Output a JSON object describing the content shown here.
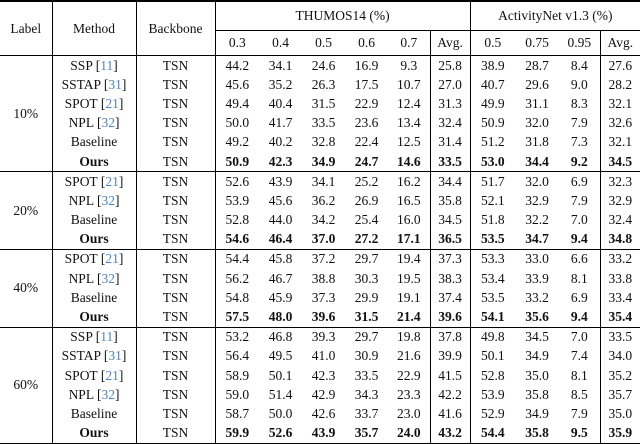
{
  "table": {
    "headers": {
      "label": "Label",
      "method": "Method",
      "backbone": "Backbone",
      "thumos": "THUMOS14 (%)",
      "activitynet": "ActivityNet v1.3 (%)",
      "thumos_cols": [
        "0.3",
        "0.4",
        "0.5",
        "0.6",
        "0.7",
        "Avg."
      ],
      "anet_cols": [
        "0.5",
        "0.75",
        "0.95",
        "Avg."
      ]
    },
    "citation_color": "#4a86c9",
    "groups": [
      {
        "label": "10%",
        "rows": [
          {
            "method": "SSP",
            "cite": "11",
            "backbone": "TSN",
            "bold": false,
            "thumos": [
              "44.2",
              "34.1",
              "24.6",
              "16.9",
              "9.3",
              "25.8"
            ],
            "anet": [
              "38.9",
              "28.7",
              "8.4",
              "27.6"
            ]
          },
          {
            "method": "SSTAP",
            "cite": "31",
            "backbone": "TSN",
            "bold": false,
            "thumos": [
              "45.6",
              "35.2",
              "26.3",
              "17.5",
              "10.7",
              "27.0"
            ],
            "anet": [
              "40.7",
              "29.6",
              "9.0",
              "28.2"
            ]
          },
          {
            "method": "SPOT",
            "cite": "21",
            "backbone": "TSN",
            "bold": false,
            "thumos": [
              "49.4",
              "40.4",
              "31.5",
              "22.9",
              "12.4",
              "31.3"
            ],
            "anet": [
              "49.9",
              "31.1",
              "8.3",
              "32.1"
            ]
          },
          {
            "method": "NPL",
            "cite": "32",
            "backbone": "TSN",
            "bold": false,
            "thumos": [
              "50.0",
              "41.7",
              "33.5",
              "23.6",
              "13.4",
              "32.4"
            ],
            "anet": [
              "50.9",
              "32.0",
              "7.9",
              "32.6"
            ]
          },
          {
            "method": "Baseline",
            "cite": null,
            "backbone": "TSN",
            "bold": false,
            "thumos": [
              "49.2",
              "40.2",
              "32.8",
              "22.4",
              "12.5",
              "31.4"
            ],
            "anet": [
              "51.2",
              "31.8",
              "7.3",
              "32.1"
            ]
          },
          {
            "method": "Ours",
            "cite": null,
            "backbone": "TSN",
            "bold": true,
            "thumos": [
              "50.9",
              "42.3",
              "34.9",
              "24.7",
              "14.6",
              "33.5"
            ],
            "anet": [
              "53.0",
              "34.4",
              "9.2",
              "34.5"
            ]
          }
        ]
      },
      {
        "label": "20%",
        "rows": [
          {
            "method": "SPOT",
            "cite": "21",
            "backbone": "TSN",
            "bold": false,
            "thumos": [
              "52.6",
              "43.9",
              "34.1",
              "25.2",
              "16.2",
              "34.4"
            ],
            "anet": [
              "51.7",
              "32.0",
              "6.9",
              "32.3"
            ]
          },
          {
            "method": "NPL",
            "cite": "32",
            "backbone": "TSN",
            "bold": false,
            "thumos": [
              "53.9",
              "45.6",
              "36.2",
              "26.9",
              "16.5",
              "35.8"
            ],
            "anet": [
              "52.1",
              "32.9",
              "7.9",
              "32.9"
            ]
          },
          {
            "method": "Baseline",
            "cite": null,
            "backbone": "TSN",
            "bold": false,
            "thumos": [
              "52.8",
              "44.0",
              "34.2",
              "25.4",
              "16.0",
              "34.5"
            ],
            "anet": [
              "51.8",
              "32.2",
              "7.0",
              "32.4"
            ]
          },
          {
            "method": "Ours",
            "cite": null,
            "backbone": "TSN",
            "bold": true,
            "thumos": [
              "54.6",
              "46.4",
              "37.0",
              "27.2",
              "17.1",
              "36.5"
            ],
            "anet": [
              "53.5",
              "34.7",
              "9.4",
              "34.8"
            ]
          }
        ]
      },
      {
        "label": "40%",
        "rows": [
          {
            "method": "SPOT",
            "cite": "21",
            "backbone": "TSN",
            "bold": false,
            "thumos": [
              "54.4",
              "45.8",
              "37.2",
              "29.7",
              "19.4",
              "37.3"
            ],
            "anet": [
              "53.3",
              "33.0",
              "6.6",
              "33.2"
            ]
          },
          {
            "method": "NPL",
            "cite": "32",
            "backbone": "TSN",
            "bold": false,
            "thumos": [
              "56.2",
              "46.7",
              "38.8",
              "30.3",
              "19.5",
              "38.3"
            ],
            "anet": [
              "53.4",
              "33.9",
              "8.1",
              "33.8"
            ]
          },
          {
            "method": "Baseline",
            "cite": null,
            "backbone": "TSN",
            "bold": false,
            "thumos": [
              "54.8",
              "45.9",
              "37.3",
              "29.9",
              "19.1",
              "37.4"
            ],
            "anet": [
              "53.5",
              "33.2",
              "6.9",
              "33.4"
            ]
          },
          {
            "method": "Ours",
            "cite": null,
            "backbone": "TSN",
            "bold": true,
            "thumos": [
              "57.5",
              "48.0",
              "39.6",
              "31.5",
              "21.4",
              "39.6"
            ],
            "anet": [
              "54.1",
              "35.6",
              "9.4",
              "35.4"
            ]
          }
        ]
      },
      {
        "label": "60%",
        "rows": [
          {
            "method": "SSP",
            "cite": "11",
            "backbone": "TSN",
            "bold": false,
            "thumos": [
              "53.2",
              "46.8",
              "39.3",
              "29.7",
              "19.8",
              "37.8"
            ],
            "anet": [
              "49.8",
              "34.5",
              "7.0",
              "33.5"
            ]
          },
          {
            "method": "SSTAP",
            "cite": "31",
            "backbone": "TSN",
            "bold": false,
            "thumos": [
              "56.4",
              "49.5",
              "41.0",
              "30.9",
              "21.6",
              "39.9"
            ],
            "anet": [
              "50.1",
              "34.9",
              "7.4",
              "34.0"
            ]
          },
          {
            "method": "SPOT",
            "cite": "21",
            "backbone": "TSN",
            "bold": false,
            "thumos": [
              "58.9",
              "50.1",
              "42.3",
              "33.5",
              "22.9",
              "41.5"
            ],
            "anet": [
              "52.8",
              "35.0",
              "8.1",
              "35.2"
            ]
          },
          {
            "method": "NPL",
            "cite": "32",
            "backbone": "TSN",
            "bold": false,
            "thumos": [
              "59.0",
              "51.4",
              "42.9",
              "34.3",
              "23.3",
              "42.2"
            ],
            "anet": [
              "53.9",
              "35.8",
              "8.5",
              "35.7"
            ]
          },
          {
            "method": "Baseline",
            "cite": null,
            "backbone": "TSN",
            "bold": false,
            "thumos": [
              "58.7",
              "50.0",
              "42.6",
              "33.7",
              "23.0",
              "41.6"
            ],
            "anet": [
              "52.9",
              "34.9",
              "7.9",
              "35.0"
            ]
          },
          {
            "method": "Ours",
            "cite": null,
            "backbone": "TSN",
            "bold": true,
            "thumos": [
              "59.9",
              "52.6",
              "43.9",
              "35.7",
              "24.0",
              "43.2"
            ],
            "anet": [
              "54.4",
              "35.8",
              "9.5",
              "35.9"
            ]
          }
        ]
      }
    ]
  }
}
